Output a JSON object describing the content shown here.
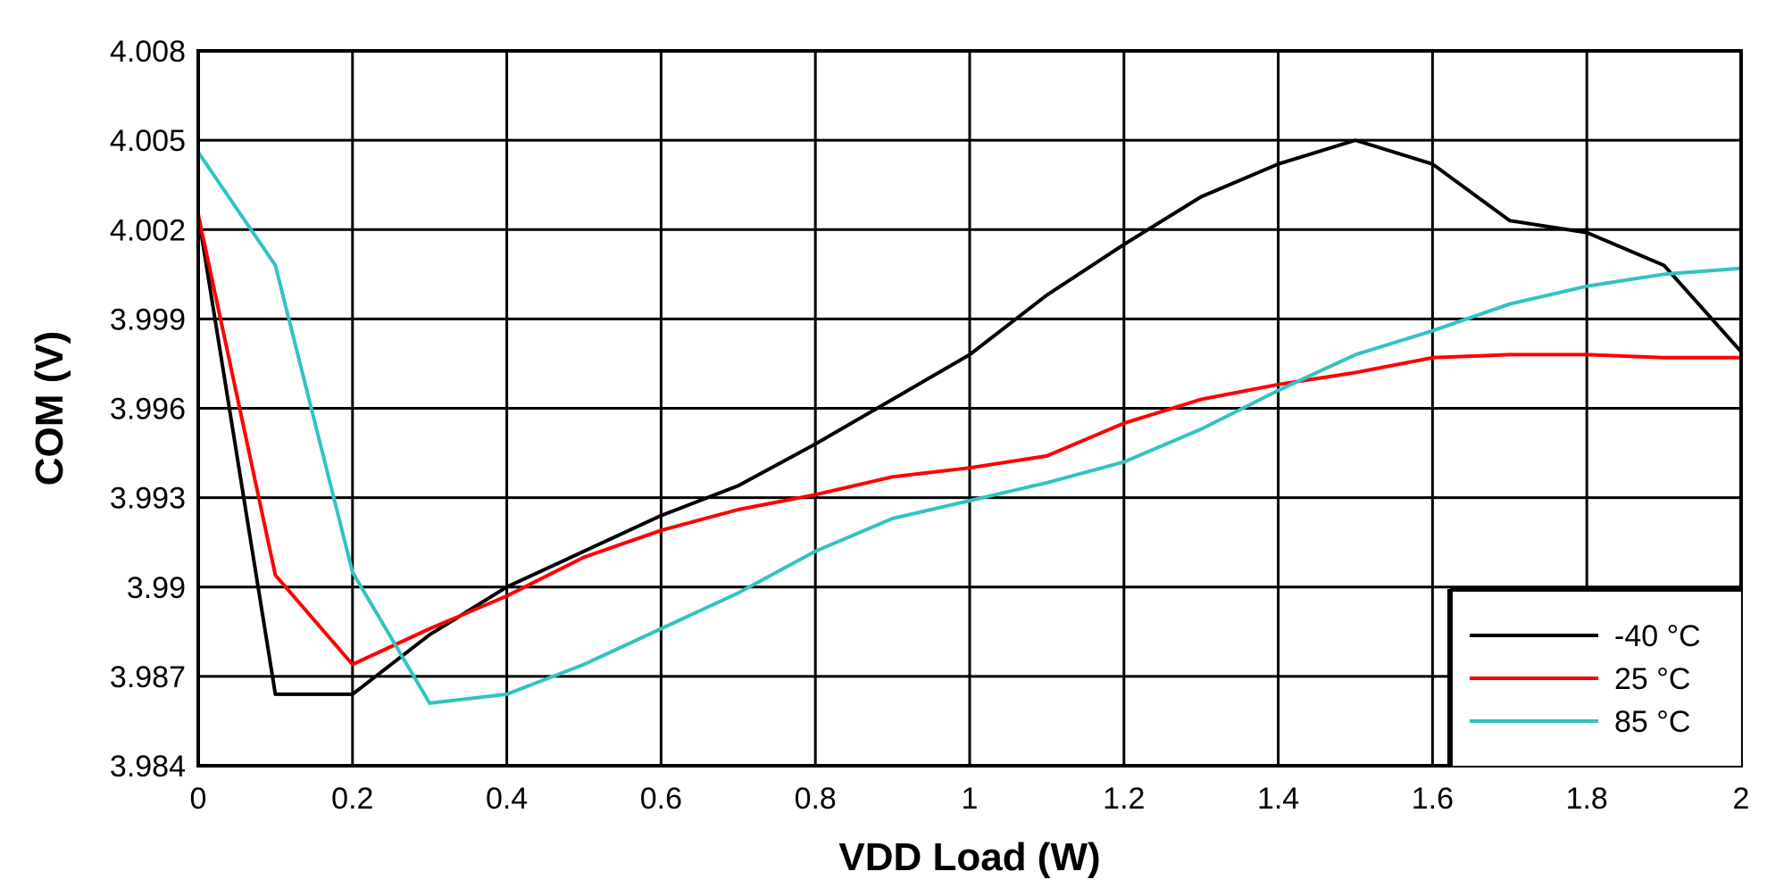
{
  "chart_data": {
    "type": "line",
    "xlabel": "VDD Load (W)",
    "ylabel": "COM (V)",
    "xlim": [
      0,
      2
    ],
    "ylim": [
      3.984,
      4.008
    ],
    "x_ticks": [
      "0",
      "0.2",
      "0.4",
      "0.6",
      "0.8",
      "1",
      "1.2",
      "1.4",
      "1.6",
      "1.8",
      "2"
    ],
    "y_ticks": [
      "3.984",
      "3.987",
      "3.99",
      "3.993",
      "3.996",
      "3.999",
      "4.002",
      "4.005",
      "4.008"
    ],
    "grid": true,
    "legend_position": "bottom-right",
    "x": [
      0,
      0.1,
      0.2,
      0.3,
      0.4,
      0.5,
      0.6,
      0.7,
      0.8,
      0.9,
      1.0,
      1.1,
      1.2,
      1.3,
      1.4,
      1.5,
      1.6,
      1.7,
      1.8,
      1.9,
      2.0
    ],
    "series": [
      {
        "name": "-40 °C",
        "color": "#000000",
        "values": [
          4.0025,
          3.9864,
          3.9864,
          3.9884,
          3.99,
          3.9912,
          3.9924,
          3.9934,
          3.9948,
          3.9963,
          3.9978,
          3.9998,
          4.0015,
          4.0031,
          4.0042,
          4.005,
          4.0042,
          4.0023,
          4.0019,
          4.0008,
          3.9979
        ]
      },
      {
        "name": "25 °C",
        "color": "#ff0000",
        "values": [
          4.0025,
          3.9904,
          3.9874,
          3.9886,
          3.9897,
          3.991,
          3.9919,
          3.9926,
          3.9931,
          3.9937,
          3.994,
          3.9944,
          3.9955,
          3.9963,
          3.9968,
          3.9972,
          3.9977,
          3.9978,
          3.9978,
          3.9977,
          3.9977
        ]
      },
      {
        "name": "85 °C",
        "color": "#33c2c2",
        "values": [
          4.0046,
          4.0008,
          3.9905,
          3.9861,
          3.9864,
          3.9874,
          3.9886,
          3.9898,
          3.9912,
          3.9923,
          3.9929,
          3.9935,
          3.9942,
          3.9953,
          3.9966,
          3.9978,
          3.9986,
          3.9995,
          4.0001,
          4.0005,
          4.0007
        ]
      }
    ]
  }
}
